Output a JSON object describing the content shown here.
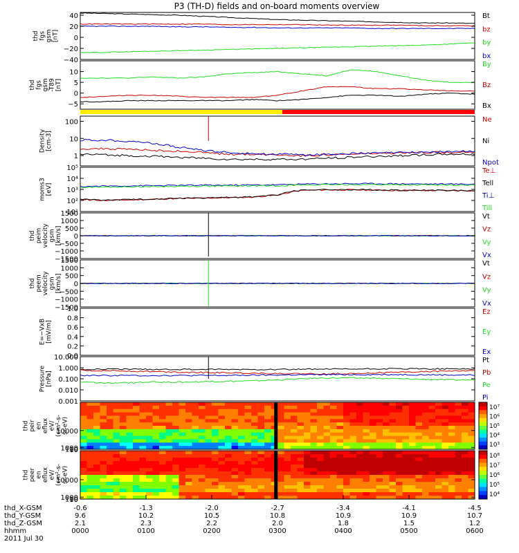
{
  "title": "P3 (TH-D) fields and on-board moments overview",
  "colors": {
    "black": "#000000",
    "red": "#cc0000",
    "green": "#22dd22",
    "blue": "#0000cc",
    "bar_yellow": "#ffee00",
    "bar_red": "#ff0000"
  },
  "chart_data": [
    {
      "type": "line",
      "id": "p1",
      "ylabel": [
        "thd",
        "fgs",
        "gsm",
        "[nT]"
      ],
      "yticks": [
        "40",
        "20",
        "0",
        "−20",
        "−40"
      ],
      "ylim": [
        -40,
        45
      ],
      "tick_values": [
        40,
        20,
        0,
        -20,
        -40
      ],
      "series": [
        {
          "name": "Bt",
          "color": "black",
          "values": [
            44,
            43,
            42,
            41,
            40,
            38,
            36,
            34,
            32,
            31,
            30,
            29,
            28,
            27,
            26,
            26,
            25
          ]
        },
        {
          "name": "bz",
          "color": "red",
          "values": [
            24,
            24,
            24,
            24,
            24,
            24,
            23,
            23,
            23,
            23,
            22,
            22,
            22,
            22,
            21,
            21,
            21
          ]
        },
        {
          "name": "by",
          "color": "green",
          "values": [
            -28,
            -27,
            -26,
            -25,
            -24,
            -23,
            -22,
            -21,
            -20,
            -19,
            -18,
            -17,
            -16,
            -15,
            -14,
            -12,
            -10
          ]
        },
        {
          "name": "bx",
          "color": "blue",
          "values": [
            20,
            20,
            20,
            20,
            19,
            19,
            18,
            18,
            17,
            17,
            17,
            17,
            16,
            16,
            16,
            16,
            16
          ]
        }
      ]
    },
    {
      "type": "line",
      "id": "p2",
      "ylabel": [
        "thd",
        "fgs",
        "gsm",
        "-T89",
        "[nT]"
      ],
      "yticks": [
        "10",
        "5",
        "0",
        "−5"
      ],
      "ylim": [
        -7.5,
        15
      ],
      "tick_values": [
        10,
        5,
        0,
        -5
      ],
      "series": [
        {
          "name": "By",
          "color": "green",
          "values": [
            7,
            7,
            7,
            7.5,
            7,
            7.5,
            9,
            9.5,
            10,
            9,
            8,
            11,
            10,
            8,
            6,
            5,
            5
          ]
        },
        {
          "name": "Bz",
          "color": "red",
          "values": [
            -2,
            -1.5,
            -1,
            -1,
            -1.5,
            -2,
            -2,
            -2,
            -1,
            1,
            3,
            3,
            2,
            2,
            1.5,
            1,
            1
          ]
        },
        {
          "name": "Bx",
          "color": "black",
          "values": [
            -4,
            -4,
            -3.5,
            -3.5,
            -3.5,
            -3.5,
            -3.5,
            -3,
            -3.5,
            -3,
            -2,
            -1,
            -1,
            -1.5,
            -0.5,
            0,
            -0.5
          ]
        }
      ]
    },
    {
      "type": "line",
      "id": "p3",
      "log": true,
      "ylabel": [
        "Density",
        "[cm-3]"
      ],
      "yticks": [
        "100",
        "10",
        "1"
      ],
      "ylim": [
        0.25,
        200
      ],
      "tick_values": [
        100,
        10,
        1
      ],
      "series": [
        {
          "name": "Ne",
          "color": "red",
          "values": [
            2.5,
            2.5,
            2.3,
            2,
            1.8,
            1.5,
            1.2,
            1.2,
            1.1,
            1,
            1.1,
            1.2,
            1.3,
            1.4,
            1.5,
            1.6,
            1.6
          ]
        },
        {
          "name": "Ni",
          "color": "black",
          "values": [
            1.2,
            1.1,
            1,
            0.9,
            0.8,
            0.7,
            0.6,
            0.6,
            0.6,
            0.6,
            0.7,
            0.8,
            0.9,
            1,
            1.1,
            1.2,
            1.2
          ]
        },
        {
          "name": "Npot",
          "color": "blue",
          "values": [
            8,
            8,
            7,
            5,
            3,
            2,
            1.5,
            1.3,
            1.2,
            1.1,
            1.2,
            1.3,
            1.4,
            1.5,
            1.6,
            1.7,
            1.8
          ]
        }
      ]
    },
    {
      "type": "line",
      "id": "p4",
      "log": true,
      "ylabel": [
        "moms3",
        "[eV]"
      ],
      "yticks": [
        "10⁵",
        "10⁴",
        "10³",
        "10²",
        "10¹"
      ],
      "ylim": [
        10,
        100000
      ],
      "tick_values": [
        100000,
        10000,
        1000,
        100,
        10
      ],
      "series": [
        {
          "name": "Te⊥",
          "color": "red",
          "values": [
            120,
            100,
            110,
            130,
            150,
            160,
            180,
            200,
            300,
            800,
            900,
            900,
            850,
            800,
            800,
            780,
            750
          ]
        },
        {
          "name": "Tell",
          "color": "black",
          "values": [
            130,
            110,
            120,
            140,
            160,
            170,
            190,
            210,
            320,
            900,
            950,
            950,
            900,
            850,
            850,
            800,
            800
          ]
        },
        {
          "name": "Ti⊥",
          "color": "blue",
          "values": [
            1800,
            2000,
            2100,
            2200,
            2300,
            2400,
            2400,
            2500,
            2600,
            3000,
            3200,
            3300,
            3300,
            3200,
            3100,
            3000,
            3000
          ]
        },
        {
          "name": "Till",
          "color": "green",
          "values": [
            1500,
            1600,
            1700,
            1800,
            1900,
            2000,
            2000,
            2100,
            2200,
            2500,
            2600,
            2700,
            2700,
            2600,
            2500,
            2400,
            2400
          ]
        }
      ]
    },
    {
      "type": "line",
      "id": "p5",
      "ylabel": [
        "thd",
        "peim",
        "velocity",
        "gsm",
        "[km/s]"
      ],
      "yticks": [
        "1500",
        "1000",
        "500",
        "0",
        "−500",
        "−1000",
        "−1500"
      ],
      "ylim": [
        -1500,
        1500
      ],
      "tick_values": [
        1500,
        1000,
        500,
        0,
        -500,
        -1000,
        -1500
      ],
      "series": [
        {
          "name": "Vt",
          "color": "black",
          "values": [
            0
          ]
        },
        {
          "name": "Vz",
          "color": "red",
          "values": [
            0
          ]
        },
        {
          "name": "Vy",
          "color": "green",
          "values": [
            0
          ]
        },
        {
          "name": "Vx",
          "color": "blue",
          "values": [
            0
          ]
        }
      ]
    },
    {
      "type": "line",
      "id": "p6",
      "ylabel": [
        "thd",
        "peem",
        "velocity",
        "gsm",
        "[km/s]"
      ],
      "yticks": [
        "1500",
        "1000",
        "500",
        "0",
        "−500",
        "−1000",
        "−1500"
      ],
      "ylim": [
        -1500,
        1500
      ],
      "tick_values": [
        1500,
        1000,
        500,
        0,
        -500,
        -1000,
        -1500
      ],
      "series": [
        {
          "name": "Vt",
          "color": "black",
          "values": [
            0
          ]
        },
        {
          "name": "Vz",
          "color": "red",
          "values": [
            0
          ]
        },
        {
          "name": "Vy",
          "color": "green",
          "values": [
            0
          ]
        },
        {
          "name": "Vx",
          "color": "blue",
          "values": [
            0
          ]
        }
      ]
    },
    {
      "type": "line",
      "id": "p7",
      "ylabel": [
        "E=−VxB",
        "[mV/m]"
      ],
      "yticks": [
        "1.0",
        "0.8",
        "0.6",
        "0.4",
        "0.2",
        "0.0"
      ],
      "ylim": [
        0,
        1
      ],
      "tick_values": [
        1,
        0.8,
        0.6,
        0.4,
        0.2,
        0
      ],
      "series": [
        {
          "name": "Ez",
          "color": "red",
          "values": []
        },
        {
          "name": "Ey",
          "color": "green",
          "values": []
        },
        {
          "name": "Ex",
          "color": "blue",
          "values": []
        }
      ]
    },
    {
      "type": "line",
      "id": "p8",
      "log": true,
      "ylabel": [
        "Pressure",
        "[nPa]"
      ],
      "yticks": [
        "10.000",
        "1.000",
        "0.100",
        "0.010",
        "0.001"
      ],
      "ylim": [
        0.001,
        10
      ],
      "tick_values": [
        10,
        1,
        0.1,
        0.01,
        0.001
      ],
      "series": [
        {
          "name": "Pt",
          "color": "black",
          "values": [
            0.7,
            0.75,
            0.75,
            0.72,
            0.7,
            0.7,
            0.7,
            0.7,
            0.72,
            0.72,
            0.75,
            0.75,
            0.8,
            0.8,
            0.8,
            0.8,
            0.8
          ]
        },
        {
          "name": "Pb",
          "color": "red",
          "values": [
            0.6,
            0.55,
            0.5,
            0.45,
            0.4,
            0.37,
            0.35,
            0.32,
            0.3,
            0.28,
            0.28,
            0.3,
            0.35,
            0.4,
            0.45,
            0.5,
            0.55
          ]
        },
        {
          "name": "Pe",
          "color": "green",
          "values": [
            0.05,
            0.04,
            0.045,
            0.05,
            0.05,
            0.055,
            0.06,
            0.065,
            0.08,
            0.1,
            0.12,
            0.12,
            0.11,
            0.1,
            0.09,
            0.08,
            0.08
          ]
        },
        {
          "name": "Pi",
          "color": "blue",
          "values": [
            0.2,
            0.2,
            0.2,
            0.2,
            0.2,
            0.2,
            0.2,
            0.21,
            0.22,
            0.23,
            0.24,
            0.24,
            0.24,
            0.24,
            0.23,
            0.22,
            0.22
          ]
        }
      ]
    },
    {
      "type": "heatmap",
      "id": "p9",
      "ylabel": [
        "thd",
        "peir",
        "en",
        "eflux",
        "eV/",
        "(cm²-s-",
        "sr-eV)"
      ],
      "yticks": [
        "10000",
        "1000",
        "100",
        "10"
      ],
      "ylim": [
        8,
        25000
      ],
      "tick_values": [
        10000,
        1000,
        100,
        10
      ],
      "colorbar_ticks": [
        "10⁷",
        "10⁶",
        "10⁵",
        "10⁴",
        "10³"
      ],
      "colorbar_values": [
        7,
        6,
        5,
        4,
        3
      ],
      "colorbar_range": [
        2.5,
        7.5
      ]
    },
    {
      "type": "heatmap",
      "id": "p10",
      "ylabel": [
        "thd",
        "peer",
        "en",
        "eflux",
        "eV/",
        "(cm²-s-",
        "sr-eV)"
      ],
      "yticks": [
        "10000",
        "1000",
        "100",
        "10"
      ],
      "ylim": [
        8,
        25000
      ],
      "tick_values": [
        10000,
        1000,
        100,
        10
      ],
      "colorbar_ticks": [
        "10⁸",
        "10⁷",
        "10⁶",
        "10⁵",
        "10⁴"
      ],
      "colorbar_values": [
        8,
        7,
        6,
        5,
        4
      ],
      "colorbar_range": [
        3.5,
        8.5
      ]
    }
  ],
  "bottom_axis": {
    "labels": [
      "thd_X-GSM",
      "thd_Y-GSM",
      "thd_Z-GSM",
      "hhmm",
      "2011 Jul 30"
    ],
    "columns": [
      [
        "-0.6",
        "9.6",
        "2.1",
        "0000"
      ],
      [
        "-1.3",
        "10.2",
        "2.3",
        "0100"
      ],
      [
        "-2.0",
        "10.5",
        "2.2",
        "0200"
      ],
      [
        "-2.7",
        "10.8",
        "2.0",
        "0300"
      ],
      [
        "-3.4",
        "10.9",
        "1.8",
        "0400"
      ],
      [
        "-4.1",
        "10.9",
        "1.5",
        "0500"
      ],
      [
        "-4.5",
        "10.7",
        "1.2",
        "0600"
      ]
    ]
  }
}
